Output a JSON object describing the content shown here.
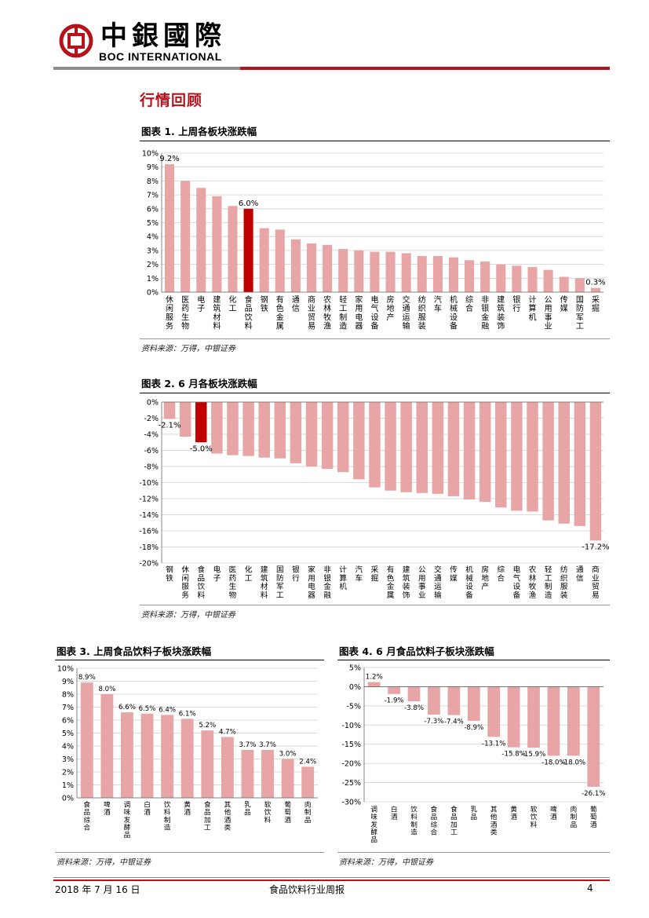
{
  "header": {
    "logo_cn": "中銀國際",
    "logo_en": "BOC INTERNATIONAL",
    "colors": {
      "brand_red": "#b5121b",
      "rule_gray": "#8c8c8c"
    }
  },
  "section_title": "行情回顾",
  "figures": [
    {
      "title": "图表 1. 上周各板块涨跌幅",
      "source": "资料来源：万得，中银证券"
    },
    {
      "title": "图表 2. 6 月各板块涨跌幅",
      "source": "资料来源：万得，中银证券"
    },
    {
      "title": "图表 3. 上周食品饮料子板块涨跌幅",
      "source": "资料来源：万得，中银证券"
    },
    {
      "title": "图表 4. 6 月食品饮料子板块涨跌幅",
      "source": "资料来源：万得，中银证券"
    }
  ],
  "chart_data": [
    {
      "type": "bar",
      "categories": [
        "休闲服务",
        "医药生物",
        "电子",
        "建筑材料",
        "化工",
        "食品饮料",
        "钢铁",
        "有色金属",
        "通信",
        "商业贸易",
        "农林牧渔",
        "轻工制造",
        "家用电器",
        "电气设备",
        "房地产",
        "交通运输",
        "纺织服装",
        "汽车",
        "机械设备",
        "综合",
        "非银金融",
        "建筑装饰",
        "银行",
        "计算机",
        "公用事业",
        "传媒",
        "国防军工",
        "采掘"
      ],
      "values": [
        9.2,
        8.0,
        7.5,
        6.9,
        6.2,
        6.0,
        4.6,
        4.5,
        3.8,
        3.5,
        3.4,
        3.1,
        3.0,
        2.9,
        2.9,
        2.8,
        2.6,
        2.6,
        2.5,
        2.3,
        2.2,
        2.0,
        1.9,
        1.8,
        1.6,
        1.1,
        1.0,
        0.3
      ],
      "ylim": [
        0,
        10
      ],
      "yticks": [
        "0%",
        "1%",
        "2%",
        "3%",
        "4%",
        "5%",
        "6%",
        "7%",
        "8%",
        "9%",
        "10%"
      ],
      "data_labels": [
        {
          "index": 0,
          "text": "9.2%"
        },
        {
          "index": 5,
          "text": "6.0%"
        },
        {
          "index": 27,
          "text": "0.3%"
        }
      ],
      "highlight_index": 5,
      "colors": {
        "bar": "#e8a5a5",
        "highlight": "#c00000"
      }
    },
    {
      "type": "bar",
      "categories": [
        "钢铁",
        "休闲服务",
        "食品饮料",
        "电子",
        "医药生物",
        "化工",
        "建筑材料",
        "国防军工",
        "银行",
        "家用电器",
        "非银金融",
        "计算机",
        "汽车",
        "采掘",
        "有色金属",
        "建筑装饰",
        "公用事业",
        "交通运输",
        "传媒",
        "机械设备",
        "房地产",
        "综合",
        "电气设备",
        "农林牧渔",
        "轻工制造",
        "纺织服装",
        "通信",
        "商业贸易"
      ],
      "values": [
        -2.1,
        -4.3,
        -5.0,
        -6.4,
        -6.6,
        -6.7,
        -6.9,
        -7.0,
        -7.6,
        -8.0,
        -8.3,
        -8.7,
        -9.6,
        -10.6,
        -11.0,
        -11.2,
        -11.3,
        -11.4,
        -11.7,
        -12.1,
        -12.4,
        -13.1,
        -13.5,
        -13.6,
        -14.7,
        -15.1,
        -15.4,
        -17.2
      ],
      "ylim": [
        -20,
        0
      ],
      "yticks": [
        "-20%",
        "-18%",
        "-16%",
        "-14%",
        "-12%",
        "-10%",
        "-8%",
        "-6%",
        "-4%",
        "-2%",
        "0%"
      ],
      "data_labels": [
        {
          "index": 0,
          "text": "-2.1%"
        },
        {
          "index": 2,
          "text": "-5.0%"
        },
        {
          "index": 27,
          "text": "-17.2%"
        }
      ],
      "highlight_index": 2,
      "colors": {
        "bar": "#e8a5a5",
        "highlight": "#c00000"
      }
    },
    {
      "type": "bar",
      "categories": [
        "食品综合",
        "啤酒",
        "调味发酵品",
        "白酒",
        "饮料制造",
        "黄酒",
        "食品加工",
        "其他酒类",
        "乳品",
        "软饮料",
        "葡萄酒",
        "肉制品"
      ],
      "values": [
        8.9,
        8.0,
        6.6,
        6.5,
        6.4,
        6.1,
        5.2,
        4.7,
        3.7,
        3.7,
        3.0,
        2.4
      ],
      "ylim": [
        0,
        10
      ],
      "yticks": [
        "0%",
        "1%",
        "2%",
        "3%",
        "4%",
        "5%",
        "6%",
        "7%",
        "8%",
        "9%",
        "10%"
      ],
      "data_labels": [
        {
          "index": 0,
          "text": "8.9%"
        },
        {
          "index": 1,
          "text": "8.0%"
        },
        {
          "index": 2,
          "text": "6.6%"
        },
        {
          "index": 3,
          "text": "6.5%"
        },
        {
          "index": 4,
          "text": "6.4%"
        },
        {
          "index": 5,
          "text": "6.1%"
        },
        {
          "index": 6,
          "text": "5.2%"
        },
        {
          "index": 7,
          "text": "4.7%"
        },
        {
          "index": 8,
          "text": "3.7%"
        },
        {
          "index": 9,
          "text": "3.7%"
        },
        {
          "index": 10,
          "text": "3.0%"
        },
        {
          "index": 11,
          "text": "2.4%"
        }
      ],
      "colors": {
        "bar": "#e8a5a5"
      }
    },
    {
      "type": "bar",
      "categories": [
        "调味发酵品",
        "白酒",
        "饮料制造",
        "食品综合",
        "食品加工",
        "乳品",
        "其他酒类",
        "黄酒",
        "软饮料",
        "啤酒",
        "肉制品",
        "葡萄酒"
      ],
      "values": [
        1.2,
        -1.9,
        -3.8,
        -7.3,
        -7.4,
        -8.9,
        -13.1,
        -15.8,
        -15.9,
        -18.0,
        -18.0,
        -26.1
      ],
      "ylim": [
        -30,
        5
      ],
      "yticks": [
        "-30%",
        "-25%",
        "-20%",
        "-15%",
        "-10%",
        "-5%",
        "0%",
        "5%"
      ],
      "data_labels": [
        {
          "index": 0,
          "text": "1.2%"
        },
        {
          "index": 1,
          "text": "-1.9%"
        },
        {
          "index": 2,
          "text": "-3.8%"
        },
        {
          "index": 3,
          "text": "-7.3%"
        },
        {
          "index": 4,
          "text": "-7.4%"
        },
        {
          "index": 5,
          "text": "-8.9%"
        },
        {
          "index": 6,
          "text": "-13.1%"
        },
        {
          "index": 7,
          "text": "-15.8%"
        },
        {
          "index": 8,
          "text": "-15.9%"
        },
        {
          "index": 9,
          "text": "-18.0%"
        },
        {
          "index": 10,
          "text": "-18.0%"
        },
        {
          "index": 11,
          "text": "-26.1%"
        }
      ],
      "colors": {
        "bar": "#e8a5a5"
      }
    }
  ],
  "footer": {
    "date": "2018 年 7 月 16 日",
    "report_name": "食品饮料行业周报",
    "page": "4"
  }
}
